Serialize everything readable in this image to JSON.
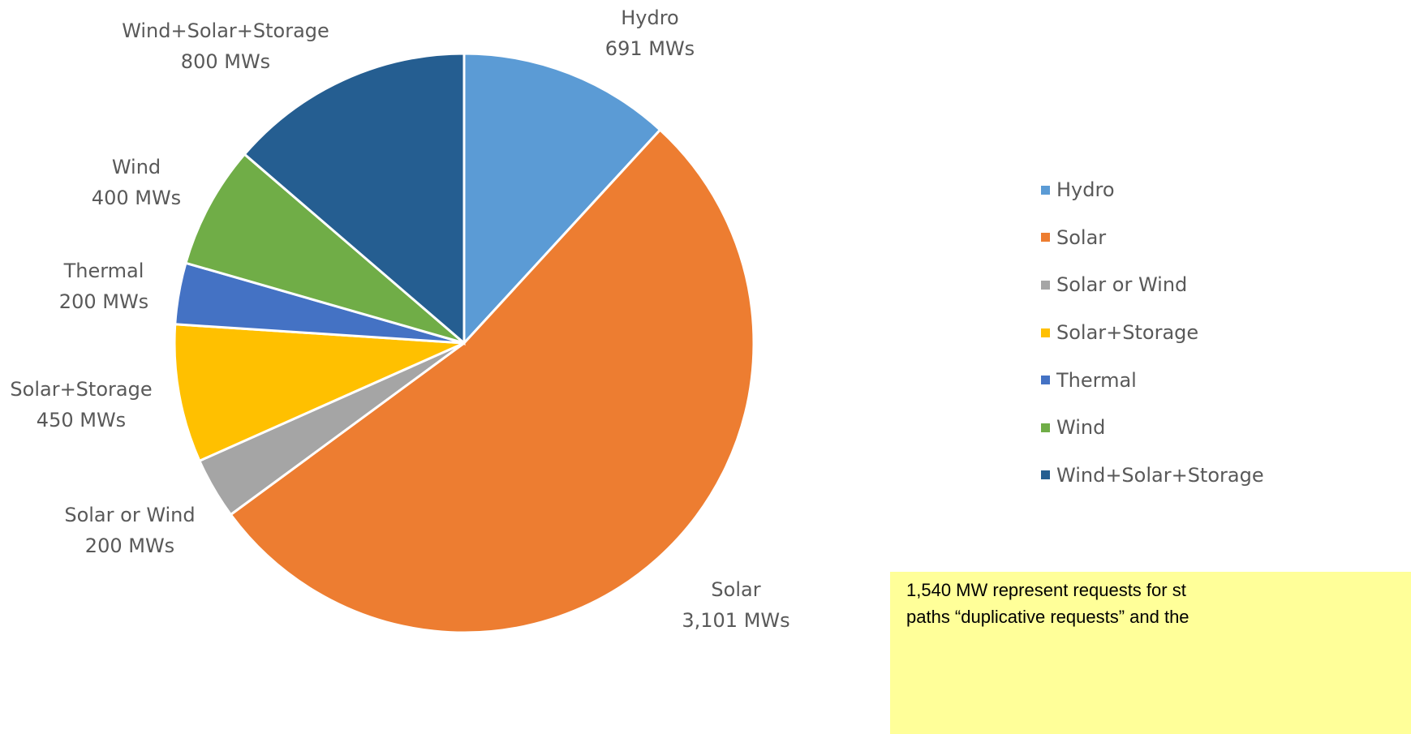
{
  "chart_data": {
    "type": "pie",
    "unit": "MWs",
    "slices": [
      {
        "name": "Hydro",
        "value": 691,
        "value_label": "691 MWs",
        "color": "#5b9bd5"
      },
      {
        "name": "Solar",
        "value": 3101,
        "value_label": "3,101 MWs",
        "color": "#ed7d31"
      },
      {
        "name": "Solar or Wind",
        "value": 200,
        "value_label": "200 MWs",
        "color": "#a5a5a5"
      },
      {
        "name": "Solar+Storage",
        "value": 450,
        "value_label": "450 MWs",
        "color": "#ffc000"
      },
      {
        "name": "Thermal",
        "value": 200,
        "value_label": "200 MWs",
        "color": "#4472c4"
      },
      {
        "name": "Wind",
        "value": 400,
        "value_label": "400 MWs",
        "color": "#70ad47"
      },
      {
        "name": "Wind+Solar+Storage",
        "value": 800,
        "value_label": "800 MWs",
        "color": "#255e91"
      }
    ],
    "legend_position": "right"
  },
  "note": {
    "lines": [
      "1,540 MW represent requests for st",
      "paths “duplicative requests” and the"
    ]
  }
}
